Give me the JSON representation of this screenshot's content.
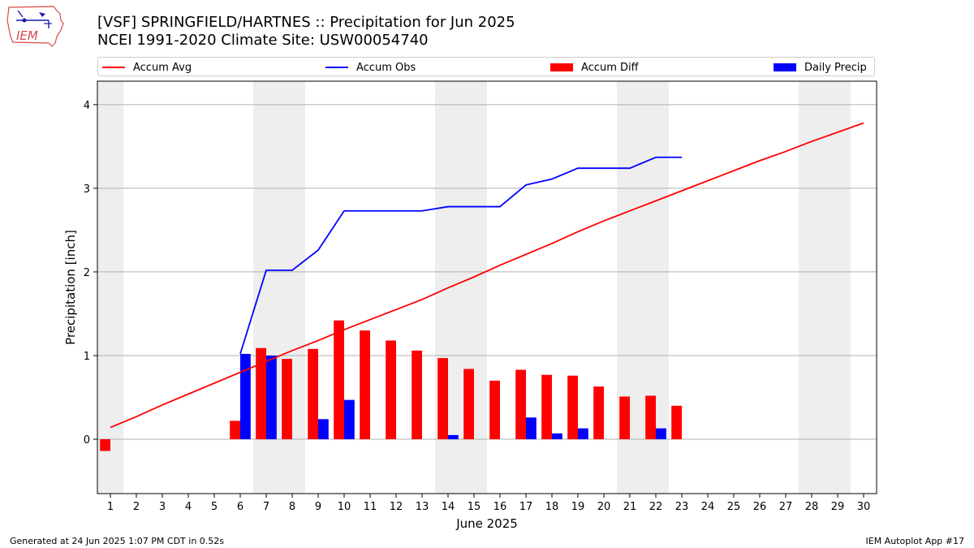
{
  "header": {
    "title_line1": "[VSF] SPRINGFIELD/HARTNES :: Precipitation for Jun 2025",
    "title_line2": "NCEI 1991-2020 Climate Site: USW00054740",
    "logo_text": "IEM"
  },
  "legend": {
    "items": [
      {
        "label": "Accum Avg",
        "kind": "line",
        "color": "#ff0000"
      },
      {
        "label": "Accum Obs",
        "kind": "line",
        "color": "#0000ff"
      },
      {
        "label": "Accum Diff",
        "kind": "box",
        "color": "#ff0000"
      },
      {
        "label": "Daily Precip",
        "kind": "box",
        "color": "#0000ff"
      }
    ]
  },
  "footer": {
    "left": "Generated at 24 Jun 2025 1:07 PM CDT in 0.52s",
    "right": "IEM Autoplot App #17"
  },
  "chart_data": {
    "type": "bar",
    "xlabel": "June 2025",
    "ylabel": "Precipitation [inch]",
    "xlim": [
      0.5,
      30.5
    ],
    "ylim": [
      -0.65,
      4.28
    ],
    "yticks": [
      0,
      1,
      2,
      3,
      4
    ],
    "categories": [
      "1",
      "2",
      "3",
      "4",
      "5",
      "6",
      "7",
      "8",
      "9",
      "10",
      "11",
      "12",
      "13",
      "14",
      "15",
      "16",
      "17",
      "18",
      "19",
      "20",
      "21",
      "22",
      "23",
      "24",
      "25",
      "26",
      "27",
      "28",
      "29",
      "30"
    ],
    "grid": true,
    "legend_position": "top",
    "weekend_shading": [
      [
        1,
        1
      ],
      [
        7,
        8
      ],
      [
        14,
        15
      ],
      [
        21,
        22
      ],
      [
        28,
        29
      ]
    ],
    "series": [
      {
        "name": "Accum Avg",
        "kind": "line",
        "color": "#ff0000",
        "x": [
          1,
          2,
          3,
          4,
          5,
          6,
          7,
          8,
          9,
          10,
          11,
          12,
          13,
          14,
          15,
          16,
          17,
          18,
          19,
          20,
          21,
          22,
          23,
          24,
          25,
          26,
          27,
          28,
          29,
          30
        ],
        "values": [
          0.14,
          0.27,
          0.41,
          0.54,
          0.67,
          0.8,
          0.93,
          1.06,
          1.18,
          1.31,
          1.43,
          1.55,
          1.67,
          1.81,
          1.94,
          2.08,
          2.21,
          2.34,
          2.48,
          2.61,
          2.73,
          2.85,
          2.97,
          3.09,
          3.21,
          3.33,
          3.44,
          3.56,
          3.67,
          3.78
        ]
      },
      {
        "name": "Accum Obs",
        "kind": "line",
        "color": "#0000ff",
        "x": [
          6,
          7,
          8,
          9,
          10,
          11,
          12,
          13,
          14,
          15,
          16,
          17,
          18,
          19,
          20,
          21,
          22,
          23
        ],
        "values": [
          1.02,
          2.02,
          2.02,
          2.26,
          2.73,
          2.73,
          2.73,
          2.73,
          2.78,
          2.78,
          2.78,
          3.04,
          3.11,
          3.24,
          3.24,
          3.24,
          3.37,
          3.37
        ]
      },
      {
        "name": "Accum Diff",
        "kind": "bar",
        "color": "#ff0000",
        "x": [
          1,
          2,
          3,
          4,
          5,
          6,
          7,
          8,
          9,
          10,
          11,
          12,
          13,
          14,
          15,
          16,
          17,
          18,
          19,
          20,
          21,
          22,
          23
        ],
        "values": [
          -0.14,
          0,
          0,
          0,
          0,
          0.22,
          1.09,
          0.96,
          1.08,
          1.42,
          1.3,
          1.18,
          1.06,
          0.97,
          0.84,
          0.7,
          0.83,
          0.77,
          0.76,
          0.63,
          0.51,
          0.52,
          0.4
        ]
      },
      {
        "name": "Daily Precip",
        "kind": "bar",
        "color": "#0000ff",
        "x": [
          6,
          7,
          9,
          10,
          14,
          17,
          18,
          19,
          22
        ],
        "values": [
          1.02,
          1.0,
          0.24,
          0.47,
          0.05,
          0.26,
          0.07,
          0.13,
          0.13
        ]
      }
    ]
  }
}
